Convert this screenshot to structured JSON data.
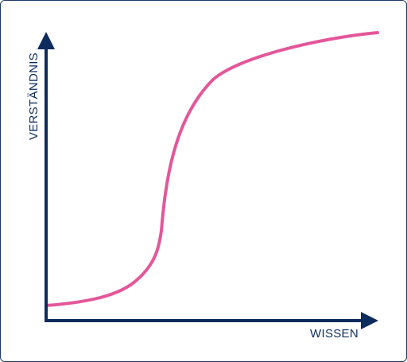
{
  "diagram": {
    "x_axis_label": "WISSEN",
    "y_axis_label": "VERSTÄNDNIS"
  },
  "colors": {
    "axis": "#0d2c5e",
    "curve": "#e3579a",
    "border": "#1e3a66",
    "background": "#ffffff"
  }
}
